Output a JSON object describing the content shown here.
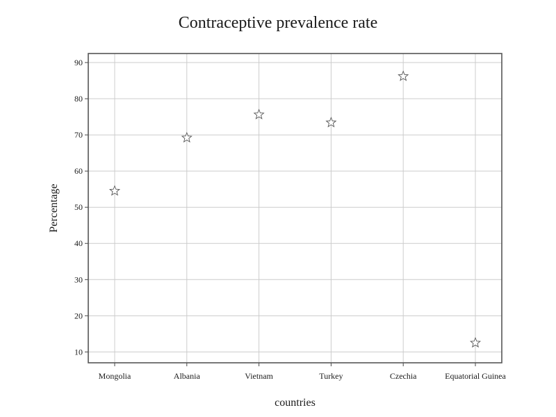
{
  "chart_data": {
    "type": "scatter",
    "title": "Contraceptive prevalence rate",
    "xlabel": "countries",
    "ylabel": "Percentage",
    "categories": [
      "Mongolia",
      "Albania",
      "Vietnam",
      "Turkey",
      "Czechia",
      "Equatorial Guinea"
    ],
    "values": [
      54.6,
      69.3,
      75.7,
      73.5,
      86.3,
      12.6
    ],
    "yticks": [
      10,
      20,
      30,
      40,
      50,
      60,
      70,
      80,
      90
    ],
    "ylim": [
      7,
      92.5
    ],
    "grid": true,
    "marker": "star",
    "marker_color": "#ffffff",
    "marker_edge_color": "#555555"
  }
}
